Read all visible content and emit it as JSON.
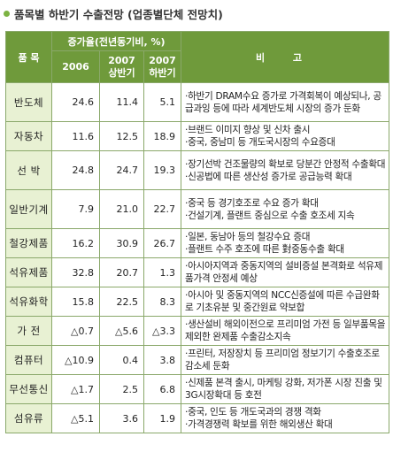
{
  "title": "품목별 하반기 수출전망 (업종별단체 전망치)",
  "header": {
    "item": "품 목",
    "growth": "증가율(전년동기비, %)",
    "y2006": "2006",
    "y2007a": "2007\n상반기",
    "y2007b": "2007\n하반기",
    "note": "비 고"
  },
  "rows": [
    {
      "name": "반도체",
      "v1": "24.6",
      "v2": "11.4",
      "v3": "5.1",
      "notes": [
        "·하반기 DRAM수요 증가로 가격회복이 예상되나, 공급과잉 등에 따라 세계반도체 시장의 증가 둔화"
      ]
    },
    {
      "name": "자동차",
      "v1": "11.6",
      "v2": "12.5",
      "v3": "18.9",
      "notes": [
        "·브랜드 이미지 향상 및 신차 출시",
        "·중국, 중남미 등 개도국시장의 수요증대"
      ]
    },
    {
      "name": "선 박",
      "v1": "24.8",
      "v2": "24.7",
      "v3": "19.3",
      "notes": [
        "·장기선박 건조물량의 확보로 당분간 안정적 수출확대",
        "·신공법에 따른 생산성 증가로 공급능력 확대"
      ]
    },
    {
      "name": "일반기계",
      "v1": "7.9",
      "v2": "21.0",
      "v3": "22.7",
      "notes": [
        "·중국 등 경기호조로 수요 증가 확대",
        "·건설기계, 플랜트 중심으로 수출 호조세 지속"
      ]
    },
    {
      "name": "철강제품",
      "v1": "16.2",
      "v2": "30.9",
      "v3": "26.7",
      "notes": [
        "·일본, 동남아 등의 철강수요 증대",
        "·플랜트 수주 호조에 따른 對중동수출 확대"
      ]
    },
    {
      "name": "석유제품",
      "v1": "32.8",
      "v2": "20.7",
      "v3": "1.3",
      "notes": [
        "·아시아지역과 중동지역의 설비증설 본격화로 석유제품가격 안정세 예상"
      ]
    },
    {
      "name": "석유화학",
      "v1": "15.8",
      "v2": "22.5",
      "v3": "8.3",
      "notes": [
        "·아시아 및 중동지역의 NCC신증설에 따른 수급완화로 기초유분 및 중간원료 약보합"
      ]
    },
    {
      "name": "가 전",
      "v1": "△0.7",
      "v2": "△5.6",
      "v3": "△3.3",
      "notes": [
        "·생산설비 해외이전으로 프리미엄 가전 등 일부품목을 제외한 완제품 수출감소지속"
      ]
    },
    {
      "name": "컴퓨터",
      "v1": "△10.9",
      "v2": "0.4",
      "v3": "3.8",
      "notes": [
        "·프린터, 저장장치 등 프리미엄 정보기기 수출호조로 감소세 둔화"
      ]
    },
    {
      "name": "무선통신",
      "v1": "△1.7",
      "v2": "2.5",
      "v3": "6.8",
      "notes": [
        "·신제품 본격 출시, 마케팅 강화, 저가폰 시장 진출 및 3G시장확대 등 호전"
      ]
    },
    {
      "name": "섬유류",
      "v1": "△5.1",
      "v2": "3.6",
      "v3": "1.9",
      "notes": [
        "·중국, 인도 등 개도국과의 경쟁 격화",
        "·가격경쟁력 확보를 위한 해외생산 확대"
      ]
    }
  ]
}
